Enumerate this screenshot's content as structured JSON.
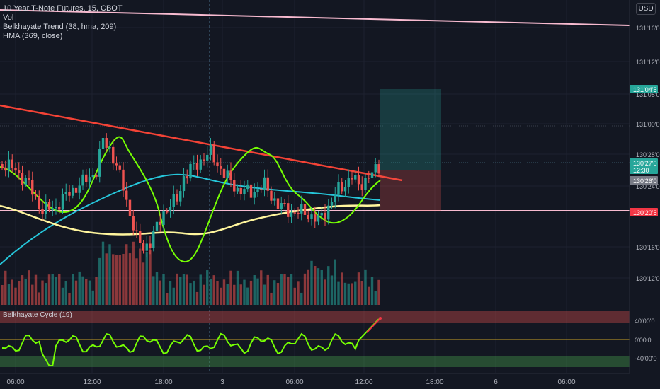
{
  "header": {
    "title": "10 Year T-Note Futures, 15, CBOT",
    "indicators": [
      "Vol",
      "Belkhayate Trend (38, hma, 209)",
      "HMA (369, close)"
    ],
    "currency": "USD"
  },
  "price_axis": {
    "ticks": [
      "131'16'0",
      "131'12'0",
      "131'08'0",
      "131'00'0",
      "130'28'0",
      "130'24'0",
      "130'16'0",
      "130'12'0"
    ],
    "badges": [
      {
        "label": "131'04'5",
        "color": "#26a69a"
      },
      {
        "label": "130'27'0",
        "sub": "12:30",
        "color": "#26a69a"
      },
      {
        "label": "130'26'0",
        "color": "#787b86"
      },
      {
        "label": "130'20'5",
        "color": "#f23645"
      }
    ]
  },
  "time_axis": [
    "06:00",
    "12:00",
    "18:00",
    "3",
    "06:00",
    "12:00",
    "18:00",
    "6",
    "06:00"
  ],
  "oscillator": {
    "label": "Belkhayate Cycle (19)",
    "ticks": [
      "40'00'0",
      "0'00'0",
      "-40'00'0"
    ]
  },
  "colors": {
    "background": "#131722",
    "up": "#26a69a",
    "down": "#ef5350",
    "trendline": "#f44336",
    "hma": "#26c6da",
    "belkhayate_mid": "#fff59d",
    "support": "#f8bbd0",
    "osc_line": "#76ff03"
  },
  "chart_data": {
    "type": "candlestick",
    "symbol": "10 Year T-Note Futures",
    "timeframe": "15",
    "exchange": "CBOT",
    "y_axis_ticks": [
      131.5,
      131.375,
      131.25,
      131.0,
      130.875,
      130.75,
      130.5,
      130.375
    ],
    "horizontal_lines": [
      130.64
    ],
    "trendline": {
      "start": 131.06,
      "end": 130.8
    },
    "position": {
      "entry": 130.813,
      "target": 131.14,
      "stop": 130.64
    },
    "last_price": 130.844,
    "bars": 67
  }
}
